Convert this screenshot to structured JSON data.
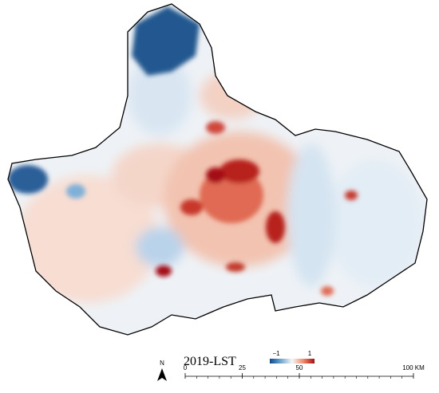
{
  "title": "2019-LST",
  "legend": {
    "min_label": "−1",
    "max_label": "1"
  },
  "north_arrow": "N",
  "scale_bar": {
    "ticks": [
      0,
      25,
      50,
      {
        "value": 100,
        "label": "100 KM"
      }
    ]
  }
}
